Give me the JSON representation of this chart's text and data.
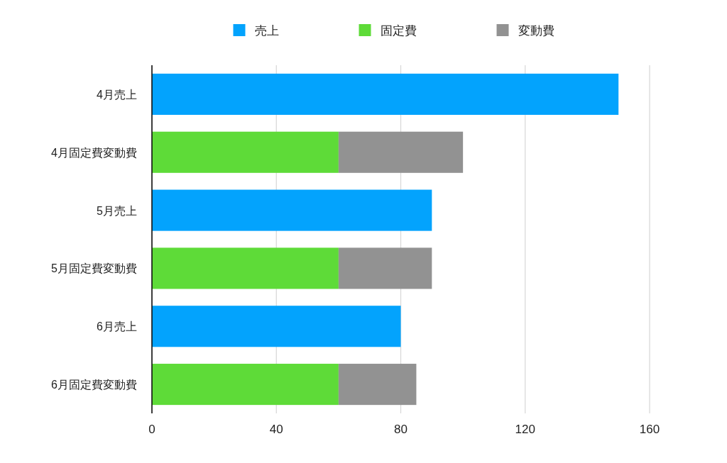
{
  "chart_data": {
    "type": "bar",
    "orientation": "horizontal",
    "stacked": true,
    "categories": [
      "4月売上",
      "4月固定費変動費",
      "5月売上",
      "5月固定費変動費",
      "6月売上",
      "6月固定費変動費"
    ],
    "series": [
      {
        "name": "売上",
        "color": "#03a3fd",
        "values": [
          150,
          null,
          90,
          null,
          80,
          null
        ]
      },
      {
        "name": "固定費",
        "color": "#5edb38",
        "values": [
          null,
          60,
          null,
          60,
          null,
          60
        ]
      },
      {
        "name": "変動費",
        "color": "#929292",
        "values": [
          null,
          40,
          null,
          30,
          null,
          25
        ]
      }
    ],
    "xlim": [
      0,
      160
    ],
    "xticks": [
      0,
      40,
      80,
      120,
      160
    ],
    "grid": "x",
    "legend": "top"
  }
}
